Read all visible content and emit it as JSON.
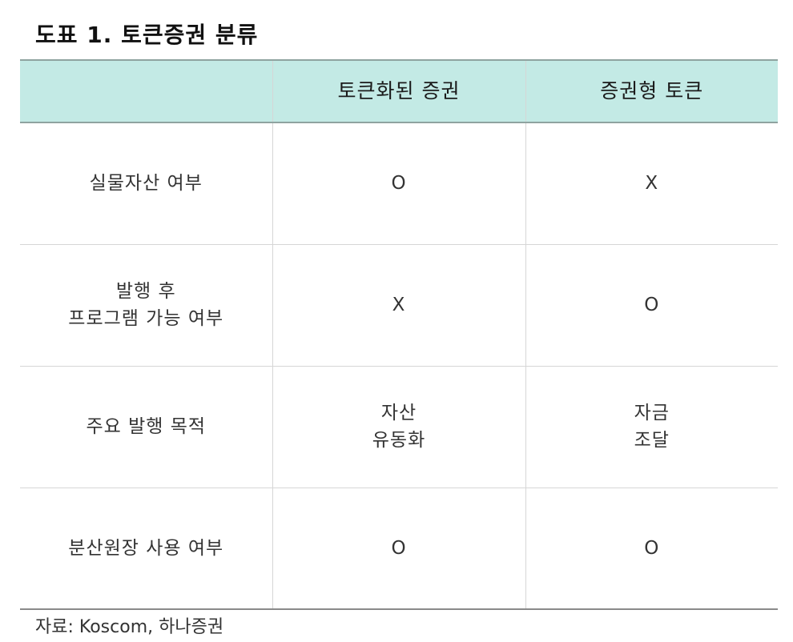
{
  "title": "도표 1. 토큰증권 분류",
  "table": {
    "headers": [
      "",
      "토큰화된 증권",
      "증권형 토큰"
    ],
    "rows": [
      {
        "label": [
          "실물자산 여부"
        ],
        "col1": [
          "O"
        ],
        "col2": [
          "X"
        ]
      },
      {
        "label": [
          "발행 후",
          "프로그램 가능 여부"
        ],
        "col1": [
          "X"
        ],
        "col2": [
          "O"
        ]
      },
      {
        "label": [
          "주요 발행 목적"
        ],
        "col1": [
          "자산",
          "유동화"
        ],
        "col2": [
          "자금",
          "조달"
        ]
      },
      {
        "label": [
          "분산원장 사용 여부"
        ],
        "col1": [
          "O"
        ],
        "col2": [
          "O"
        ]
      }
    ]
  },
  "source": "자료: Koscom, 하나증권",
  "colors": {
    "header_bg": "#c3eae5",
    "border": "#d6d6d6"
  }
}
